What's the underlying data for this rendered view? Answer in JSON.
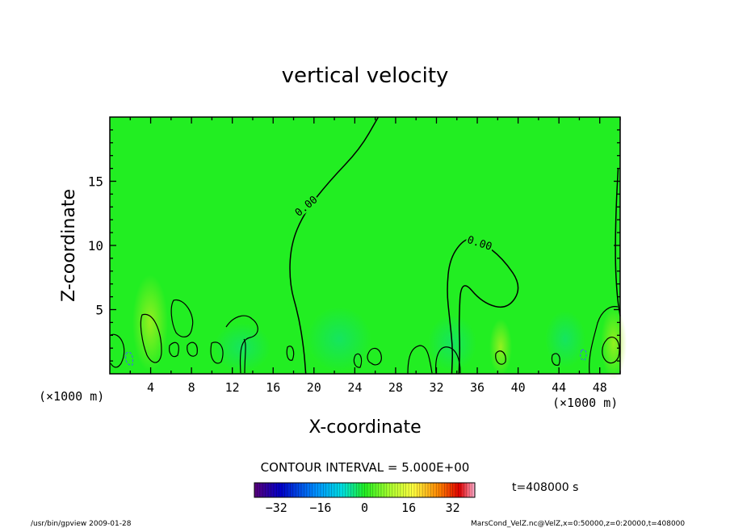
{
  "chart_data": {
    "type": "heatmap",
    "title": "vertical velocity",
    "xlabel": "X-coordinate",
    "ylabel": "Z-coordinate",
    "x_unit": "(×1000 m)",
    "y_unit": "(×1000 m)",
    "xlim": [
      0,
      50
    ],
    "ylim": [
      0,
      20
    ],
    "xticks": [
      4,
      8,
      12,
      16,
      20,
      24,
      28,
      32,
      36,
      40,
      44,
      48
    ],
    "yticks": [
      5,
      10,
      15
    ],
    "contour_interval_label": "CONTOUR INTERVAL = 5.000E+00",
    "contour_labels": [
      {
        "text": "0.00",
        "x": 19.3,
        "z": 13.0
      },
      {
        "text": "0.00",
        "x": 36.2,
        "z": 10.1
      }
    ],
    "zero_contours": [
      [
        [
          26.3,
          20.0
        ],
        [
          24.5,
          17.5
        ],
        [
          21.5,
          15.0
        ],
        [
          19.0,
          12.5
        ],
        [
          17.7,
          10.0
        ],
        [
          17.6,
          7.0
        ],
        [
          18.5,
          4.5
        ],
        [
          19.0,
          2.0
        ],
        [
          19.2,
          0.0
        ]
      ],
      [
        [
          33.5,
          0.0
        ],
        [
          33.6,
          2.0
        ],
        [
          33.3,
          4.2
        ],
        [
          33.0,
          6.5
        ],
        [
          33.3,
          9.0
        ],
        [
          34.8,
          10.6
        ],
        [
          36.2,
          10.4
        ],
        [
          38.5,
          9.0
        ],
        [
          40.4,
          6.8
        ],
        [
          39.0,
          5.0
        ],
        [
          36.5,
          5.5
        ],
        [
          34.4,
          7.5
        ],
        [
          34.2,
          4.0
        ],
        [
          34.3,
          2.0
        ],
        [
          34.2,
          0.0
        ]
      ],
      [
        [
          49.8,
          16.0
        ],
        [
          49.6,
          13.0
        ],
        [
          49.5,
          9.0
        ],
        [
          49.7,
          6.0
        ],
        [
          50.0,
          4.5
        ]
      ]
    ],
    "colorbar": {
      "ticks": [
        -32,
        -16,
        0,
        16,
        32
      ],
      "range": [
        -40,
        40
      ]
    },
    "field_background": "#22ee22",
    "time_label": "t=408000 s",
    "footer_left": "/usr/bin/gpview  2009-01-28",
    "footer_right": "MarsCond_VelZ.nc@VelZ,x=0:50000,z=0:20000,t=408000"
  }
}
